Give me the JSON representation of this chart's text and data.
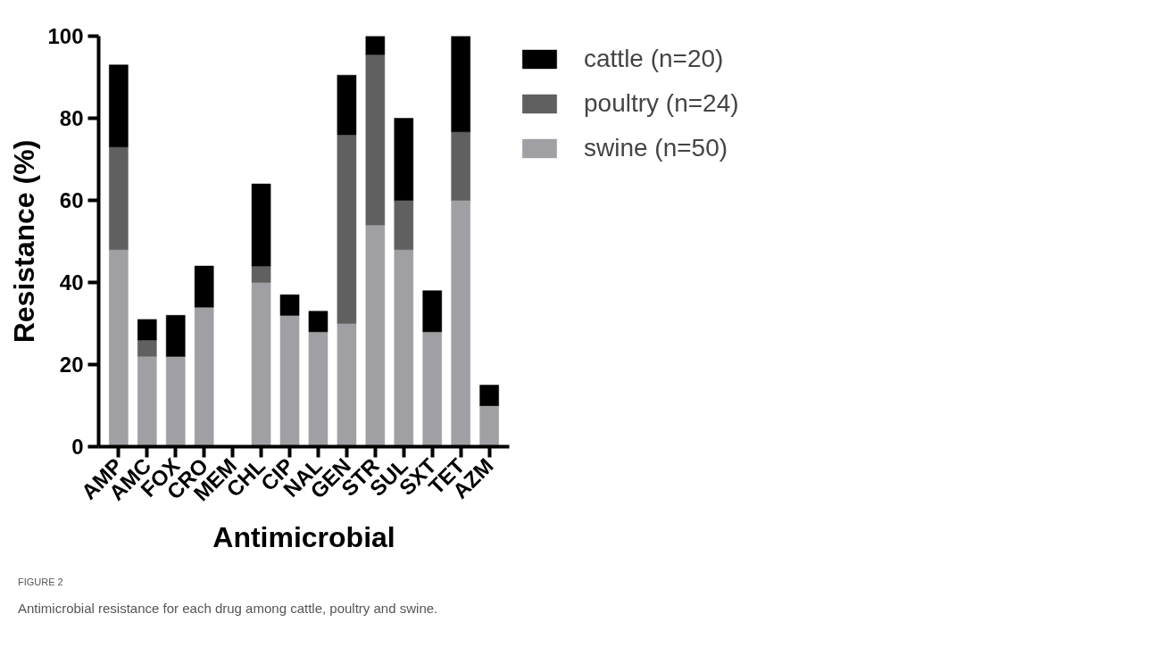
{
  "chart_data": {
    "type": "bar",
    "stacked": true,
    "xlabel": "Antimicrobial",
    "ylabel": "Resistance (%)",
    "categories": [
      "AMP",
      "AMC",
      "FOX",
      "CRO",
      "MEM",
      "CHL",
      "CIP",
      "NAL",
      "GEN",
      "STR",
      "SUL",
      "SXT",
      "TET",
      "AZM"
    ],
    "series": [
      {
        "name": "swine (n=50)",
        "color": "#a0a0a4",
        "values": [
          48,
          22,
          22,
          34,
          0,
          40,
          32,
          28,
          30,
          54,
          48,
          28,
          60,
          10
        ]
      },
      {
        "name": "poultry (n=24)",
        "color": "#606060",
        "values": [
          25,
          4,
          0,
          0,
          0,
          4,
          0,
          0,
          46,
          41.5,
          12,
          0,
          16.7,
          0
        ]
      },
      {
        "name": "cattle (n=20)",
        "color": "#000000",
        "values": [
          20,
          5,
          10,
          10,
          0,
          20,
          5,
          5,
          14.5,
          4.5,
          20,
          10,
          23.3,
          5
        ]
      }
    ],
    "ylim": [
      0,
      100
    ],
    "yticks": [
      0,
      20,
      40,
      60,
      80,
      100
    ],
    "grid": false,
    "legend": "top right",
    "annotations": [
      "FIGURE 2",
      "Antimicrobial resistance for each drug among cattle, poultry and swine."
    ]
  }
}
